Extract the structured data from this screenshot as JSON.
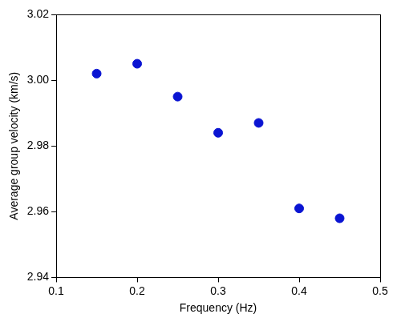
{
  "chart_data": {
    "type": "scatter",
    "x_label": "Frequency (Hz)",
    "y_label": "Average group velocity (km/s)",
    "x": [
      0.15,
      0.2,
      0.25,
      0.3,
      0.35,
      0.4,
      0.45
    ],
    "values": [
      3.002,
      3.005,
      2.995,
      2.984,
      2.987,
      2.961,
      2.958
    ],
    "color": "#0a14d2",
    "marker": "circle",
    "xlim": [
      0.1,
      0.5
    ],
    "xticks": [
      0.1,
      0.2,
      0.3,
      0.4,
      0.5
    ],
    "ylim": [
      2.94,
      3.02
    ],
    "yticks": [
      2.94,
      2.96,
      2.98,
      {
        "value": 3,
        "label": "3.00"
      },
      3.02
    ],
    "grid": false
  }
}
